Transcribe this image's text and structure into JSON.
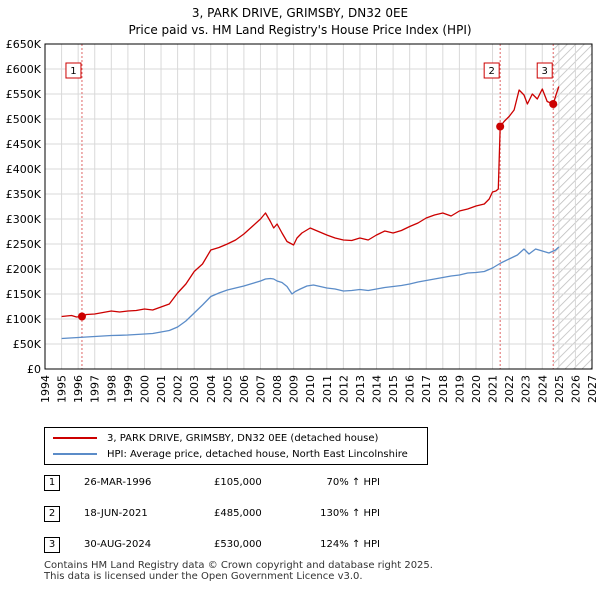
{
  "colors": {
    "property_line": "#cc0000",
    "hpi_line": "#5b8cc8",
    "grid": "#d9d9d9",
    "sale_vline": "#e06666",
    "future_hatch": "#bbbbbb",
    "marker_box_border": "#cc0000"
  },
  "title_line1": "3, PARK DRIVE, GRIMSBY, DN32 0EE",
  "title_line2": "Price paid vs. HM Land Registry's House Price Index (HPI)",
  "chart_data": {
    "type": "line",
    "title": "Price paid vs. HM Land Registry's House Price Index (HPI)",
    "xlabel": "",
    "ylabel": "",
    "xlim": [
      1994,
      2027
    ],
    "ylim": [
      0,
      650000
    ],
    "x_ticks": [
      1994,
      1995,
      1996,
      1997,
      1998,
      1999,
      2000,
      2001,
      2002,
      2003,
      2004,
      2005,
      2006,
      2007,
      2008,
      2009,
      2010,
      2011,
      2012,
      2013,
      2014,
      2015,
      2016,
      2017,
      2018,
      2019,
      2020,
      2021,
      2022,
      2023,
      2024,
      2025,
      2026,
      2027
    ],
    "y_ticks": [
      0,
      50000,
      100000,
      150000,
      200000,
      250000,
      300000,
      350000,
      400000,
      450000,
      500000,
      550000,
      600000,
      650000
    ],
    "y_tick_labels": [
      "£0",
      "£50K",
      "£100K",
      "£150K",
      "£200K",
      "£250K",
      "£300K",
      "£350K",
      "£400K",
      "£450K",
      "£500K",
      "£550K",
      "£600K",
      "£650K"
    ],
    "future_start": 2024.67,
    "series": [
      {
        "name": "3, PARK DRIVE, GRIMSBY, DN32 0EE (detached house)",
        "x": [
          1995.0,
          1995.3,
          1995.6,
          1995.9,
          1996.23,
          1996.5,
          1997.0,
          1997.5,
          1998.0,
          1998.5,
          1999.0,
          1999.5,
          2000.0,
          2000.5,
          2001.0,
          2001.5,
          2002.0,
          2002.5,
          2003.0,
          2003.5,
          2004.0,
          2004.5,
          2005.0,
          2005.5,
          2006.0,
          2006.5,
          2007.0,
          2007.3,
          2007.6,
          2007.8,
          2008.0,
          2008.3,
          2008.6,
          2009.0,
          2009.2,
          2009.5,
          2010.0,
          2010.5,
          2011.0,
          2011.5,
          2012.0,
          2012.5,
          2013.0,
          2013.5,
          2014.0,
          2014.5,
          2015.0,
          2015.5,
          2016.0,
          2016.5,
          2017.0,
          2017.5,
          2018.0,
          2018.5,
          2019.0,
          2019.5,
          2020.0,
          2020.5,
          2020.8,
          2021.0,
          2021.2,
          2021.35,
          2021.46,
          2021.7,
          2022.0,
          2022.3,
          2022.6,
          2022.9,
          2023.1,
          2023.4,
          2023.7,
          2024.0,
          2024.3,
          2024.66,
          2024.8,
          2025.0
        ],
        "values": [
          105000,
          106000,
          107000,
          104000,
          105000,
          109000,
          110000,
          113000,
          116000,
          114000,
          116000,
          117000,
          120000,
          118000,
          124000,
          130000,
          152000,
          170000,
          195000,
          210000,
          238000,
          243000,
          250000,
          258000,
          270000,
          285000,
          300000,
          312000,
          295000,
          282000,
          290000,
          272000,
          255000,
          248000,
          262000,
          272000,
          282000,
          275000,
          268000,
          262000,
          258000,
          257000,
          262000,
          258000,
          268000,
          276000,
          272000,
          277000,
          285000,
          292000,
          302000,
          308000,
          312000,
          306000,
          316000,
          320000,
          326000,
          330000,
          340000,
          354000,
          356000,
          360000,
          485000,
          495000,
          505000,
          518000,
          558000,
          548000,
          530000,
          550000,
          540000,
          560000,
          535000,
          530000,
          545000,
          565000
        ]
      },
      {
        "name": "HPI: Average price, detached house, North East Lincolnshire",
        "x": [
          1995.0,
          1995.5,
          1996.0,
          1996.5,
          1997.0,
          1997.5,
          1998.0,
          1998.5,
          1999.0,
          1999.5,
          2000.0,
          2000.5,
          2001.0,
          2001.5,
          2002.0,
          2002.5,
          2003.0,
          2003.5,
          2004.0,
          2004.5,
          2005.0,
          2005.5,
          2006.0,
          2006.5,
          2007.0,
          2007.3,
          2007.6,
          2007.8,
          2008.0,
          2008.3,
          2008.6,
          2008.9,
          2009.1,
          2009.4,
          2009.8,
          2010.2,
          2010.6,
          2011.0,
          2011.5,
          2012.0,
          2012.5,
          2013.0,
          2013.5,
          2014.0,
          2014.5,
          2015.0,
          2015.5,
          2016.0,
          2016.5,
          2017.0,
          2017.5,
          2018.0,
          2018.5,
          2019.0,
          2019.5,
          2020.0,
          2020.5,
          2021.0,
          2021.5,
          2022.0,
          2022.5,
          2022.9,
          2023.2,
          2023.6,
          2024.0,
          2024.4,
          2024.8,
          2025.0
        ],
        "values": [
          61000,
          62000,
          63000,
          64000,
          65000,
          66000,
          67000,
          67500,
          68000,
          69000,
          70000,
          71000,
          74000,
          77000,
          84000,
          96000,
          112000,
          128000,
          145000,
          152000,
          158000,
          162000,
          166000,
          171000,
          176000,
          180000,
          181000,
          180000,
          176000,
          173000,
          165000,
          150000,
          155000,
          160000,
          166000,
          168000,
          165000,
          162000,
          160000,
          156000,
          157000,
          159000,
          157000,
          160000,
          163000,
          165000,
          167000,
          170000,
          174000,
          177000,
          180000,
          183000,
          186000,
          188000,
          192000,
          193000,
          195000,
          202000,
          212000,
          220000,
          228000,
          240000,
          230000,
          240000,
          236000,
          232000,
          238000,
          244000
        ]
      }
    ],
    "sales": [
      {
        "label": "1",
        "x": 1996.23,
        "value": 105000
      },
      {
        "label": "2",
        "x": 2021.46,
        "value": 485000
      },
      {
        "label": "3",
        "x": 2024.66,
        "value": 530000
      }
    ]
  },
  "legend": {
    "property": "3, PARK DRIVE, GRIMSBY, DN32 0EE (detached house)",
    "hpi": "HPI: Average price, detached house, North East Lincolnshire"
  },
  "transactions": [
    {
      "num": "1",
      "date": "26-MAR-1996",
      "price": "£105,000",
      "hpi": "70% ↑ HPI"
    },
    {
      "num": "2",
      "date": "18-JUN-2021",
      "price": "£485,000",
      "hpi": "130% ↑ HPI"
    },
    {
      "num": "3",
      "date": "30-AUG-2024",
      "price": "£530,000",
      "hpi": "124% ↑ HPI"
    }
  ],
  "footer": {
    "line1": "Contains HM Land Registry data © Crown copyright and database right 2025.",
    "line2": "This data is licensed under the Open Government Licence v3.0."
  }
}
